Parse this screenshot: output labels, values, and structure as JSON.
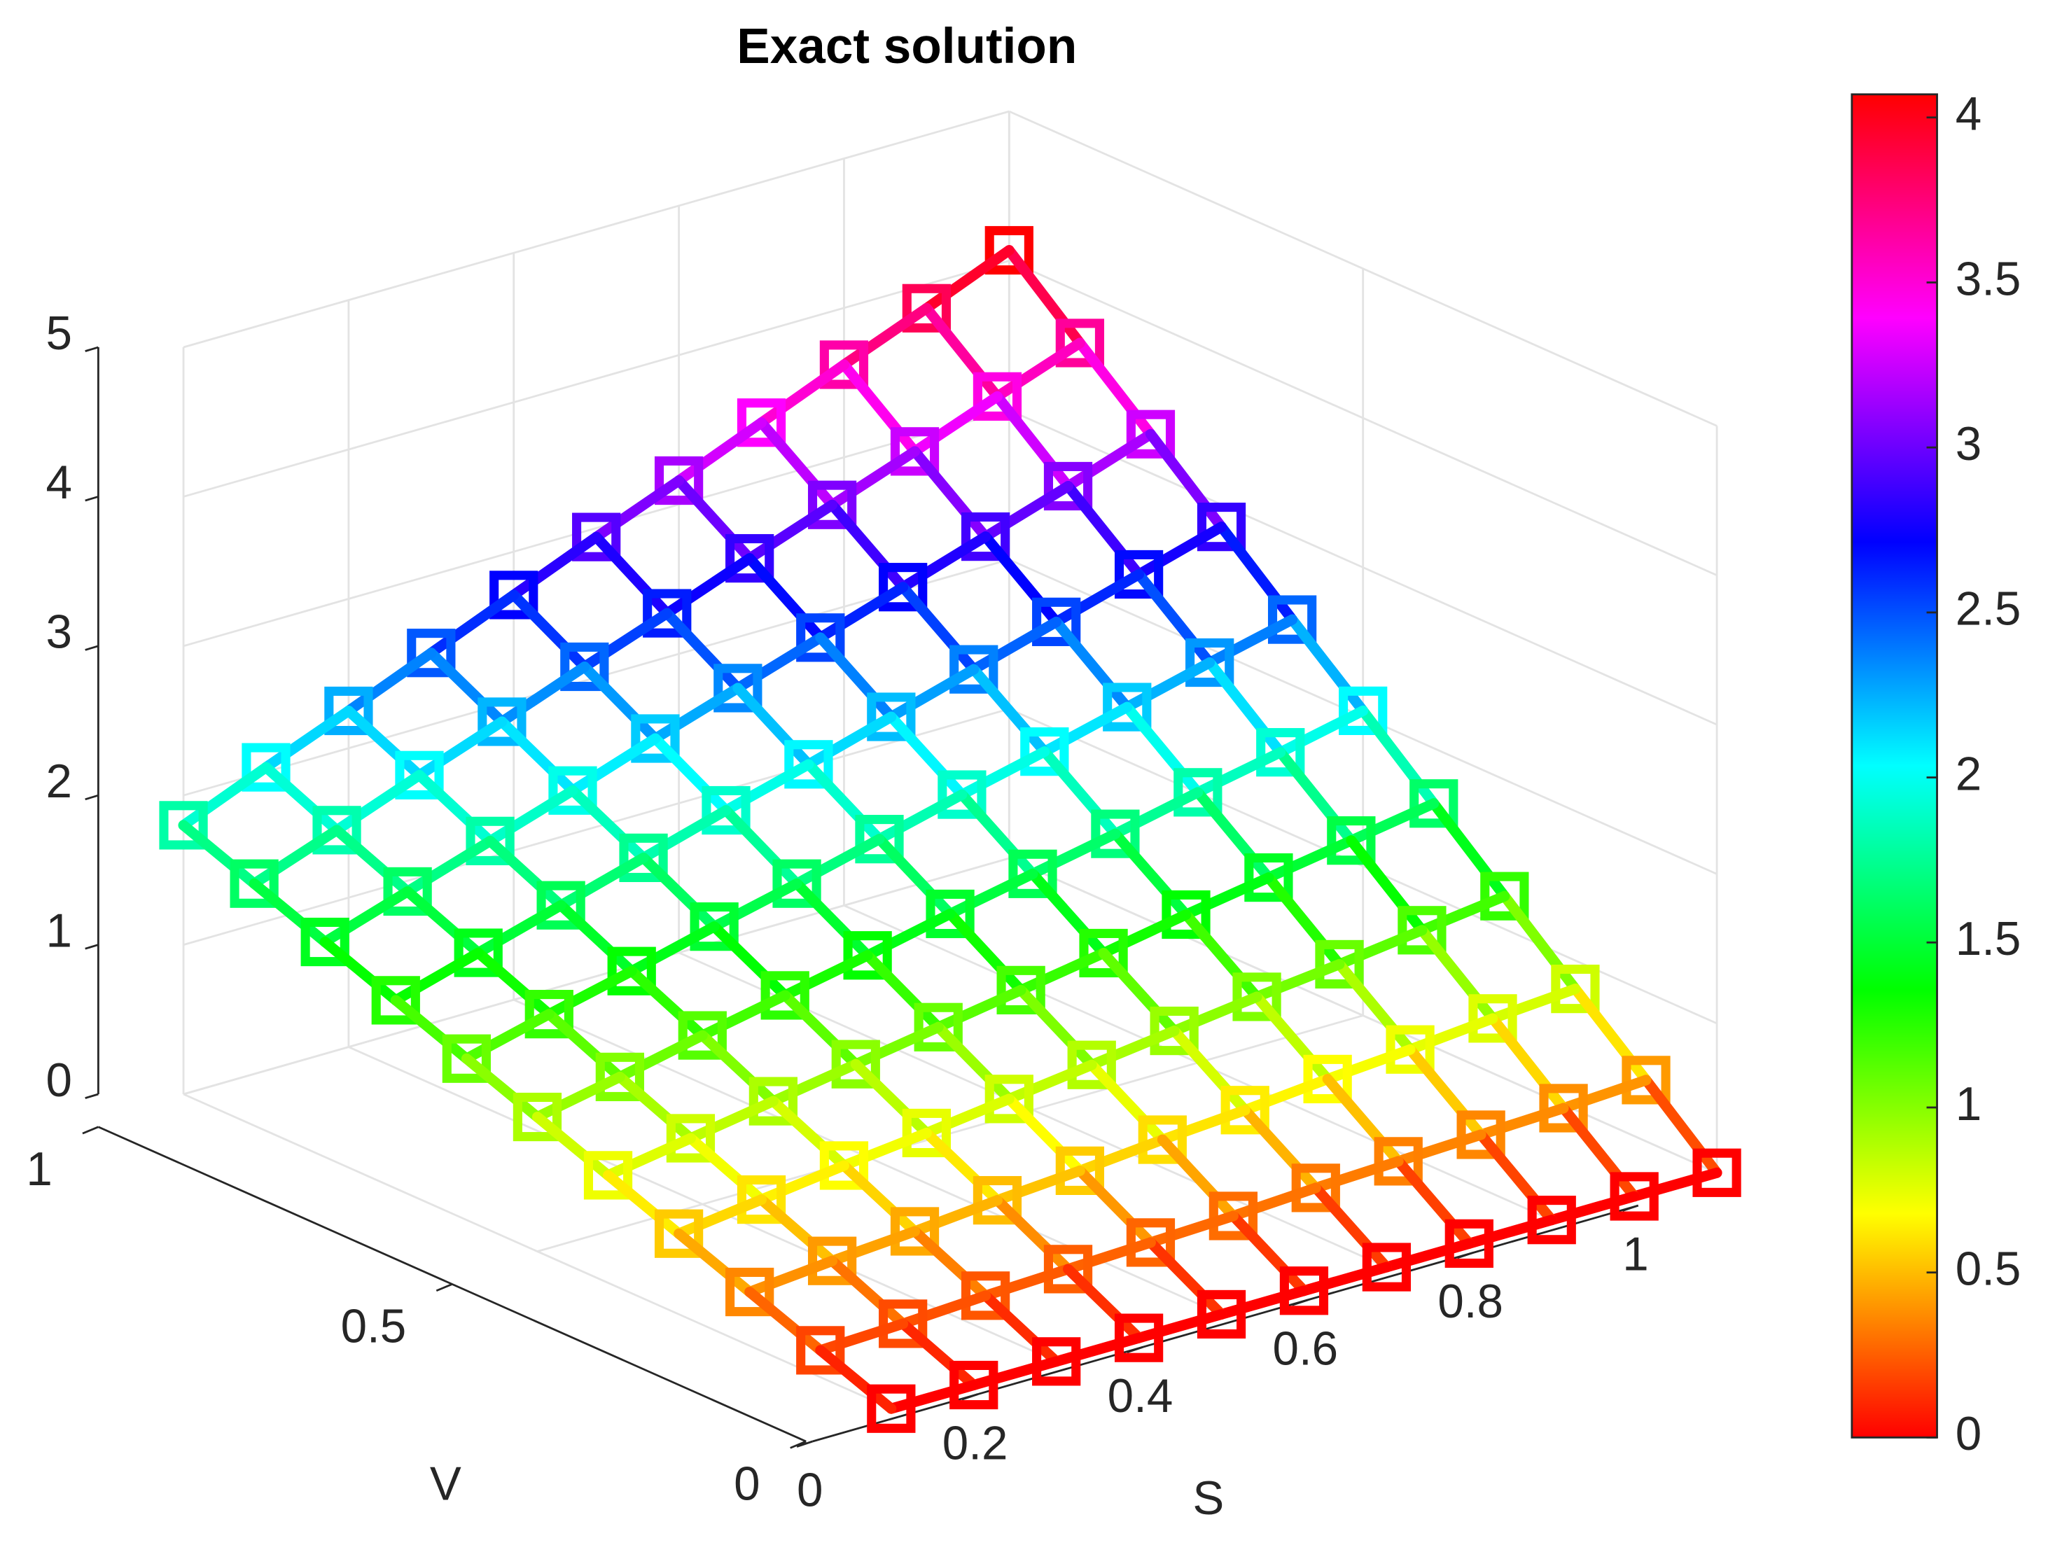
{
  "chart_data": {
    "type": "surface3d",
    "title": "Exact solution",
    "xlabel": "S",
    "ylabel": "V",
    "x": [
      0,
      0.1,
      0.2,
      0.3,
      0.4,
      0.5,
      0.6,
      0.7,
      0.8,
      0.9,
      1
    ],
    "y": [
      0,
      0.1,
      0.2,
      0.3,
      0.4,
      0.5,
      0.6,
      0.7,
      0.8,
      0.9,
      1
    ],
    "z": [
      [
        0,
        0,
        0,
        0,
        0,
        0,
        0,
        0,
        0,
        0,
        0
      ],
      [
        0.18,
        0.2,
        0.23,
        0.25,
        0.27,
        0.29,
        0.32,
        0.34,
        0.36,
        0.38,
        0.41
      ],
      [
        0.36,
        0.41,
        0.45,
        0.5,
        0.54,
        0.59,
        0.63,
        0.68,
        0.72,
        0.77,
        0.81
      ],
      [
        0.54,
        0.61,
        0.68,
        0.74,
        0.81,
        0.88,
        0.95,
        1.02,
        1.08,
        1.15,
        1.22
      ],
      [
        0.72,
        0.81,
        0.9,
        0.99,
        1.08,
        1.17,
        1.26,
        1.36,
        1.45,
        1.54,
        1.63
      ],
      [
        0.9,
        1.01,
        1.13,
        1.24,
        1.35,
        1.47,
        1.58,
        1.69,
        1.81,
        1.92,
        2.04
      ],
      [
        1.08,
        1.22,
        1.35,
        1.49,
        1.62,
        1.76,
        1.9,
        2.03,
        2.17,
        2.31,
        2.44
      ],
      [
        1.26,
        1.42,
        1.58,
        1.74,
        1.9,
        2.05,
        2.21,
        2.37,
        2.53,
        2.69,
        2.85
      ],
      [
        1.44,
        1.62,
        1.8,
        1.98,
        2.17,
        2.35,
        2.53,
        2.71,
        2.89,
        3.07,
        3.26
      ],
      [
        1.62,
        1.82,
        2.03,
        2.23,
        2.44,
        2.64,
        2.85,
        3.05,
        3.25,
        3.46,
        3.66
      ],
      [
        1.8,
        2.03,
        2.25,
        2.48,
        2.71,
        2.94,
        3.16,
        3.39,
        3.62,
        3.84,
        4.07
      ]
    ],
    "xlim": [
      0,
      1
    ],
    "xticks": [
      0,
      0.2,
      0.4,
      0.6,
      0.8,
      1
    ],
    "ylim": [
      0,
      1
    ],
    "yticks": [
      0,
      0.5,
      1
    ],
    "zlim": [
      0,
      5
    ],
    "zticks": [
      0,
      1,
      2,
      3,
      4,
      5
    ],
    "grid": true,
    "colormap": "hsv",
    "clim": [
      0,
      4.07
    ],
    "cticks": [
      0,
      0.5,
      1,
      1.5,
      2,
      2.5,
      3,
      3.5,
      4
    ],
    "marker": "square"
  }
}
